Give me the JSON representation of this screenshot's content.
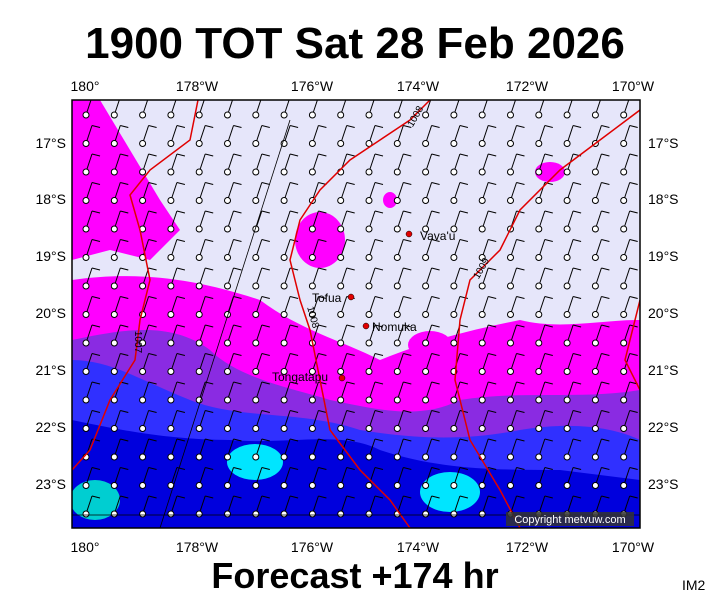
{
  "header": {
    "title": "1900 TOT Sat 28 Feb 2026"
  },
  "map": {
    "lon_labels": [
      "180°",
      "178°W",
      "176°W",
      "174°W",
      "172°W",
      "170°W"
    ],
    "lat_labels": [
      "17°S",
      "18°S",
      "19°S",
      "20°S",
      "21°S",
      "22°S",
      "23°S"
    ],
    "places": [
      "Vava'u",
      "Tofua",
      "Nomuka",
      "Tongatapu"
    ],
    "isobar_labels": [
      "1008",
      "1009",
      "1008",
      "1007"
    ],
    "copyright": "Copyright metvuw.com"
  },
  "footer": {
    "forecast": "Forecast +174 hr",
    "image_id": "IM2"
  }
}
